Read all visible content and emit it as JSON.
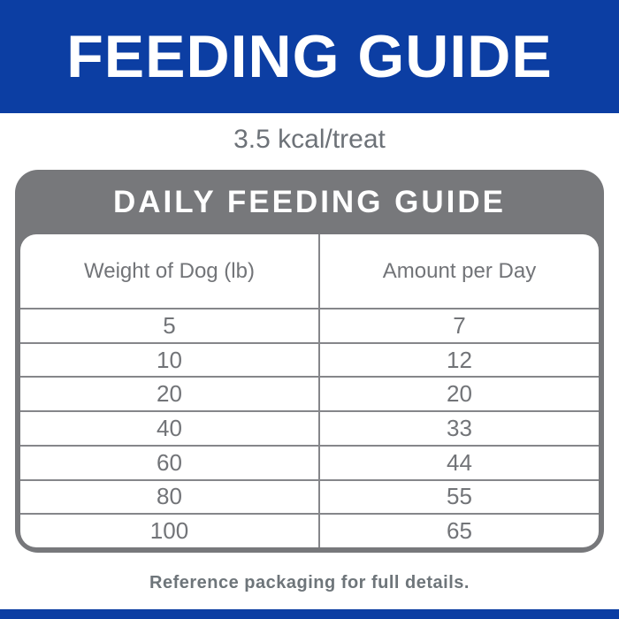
{
  "banner": {
    "title": "FEEDING GUIDE"
  },
  "subtitle": "3.5 kcal/treat",
  "table": {
    "title": "DAILY FEEDING GUIDE",
    "columns": [
      "Weight of Dog (lb)",
      "Amount per Day"
    ],
    "rows": [
      [
        "5",
        "7"
      ],
      [
        "10",
        "12"
      ],
      [
        "20",
        "20"
      ],
      [
        "40",
        "33"
      ],
      [
        "60",
        "44"
      ],
      [
        "80",
        "55"
      ],
      [
        "100",
        "65"
      ]
    ]
  },
  "footer": "Reference packaging for full details.",
  "colors": {
    "banner_blue": "#0c3ea3",
    "card_gray": "#77787b",
    "line_gray": "#85868a",
    "text_gray": "#6d7278",
    "footer_gray": "#6e757a"
  }
}
